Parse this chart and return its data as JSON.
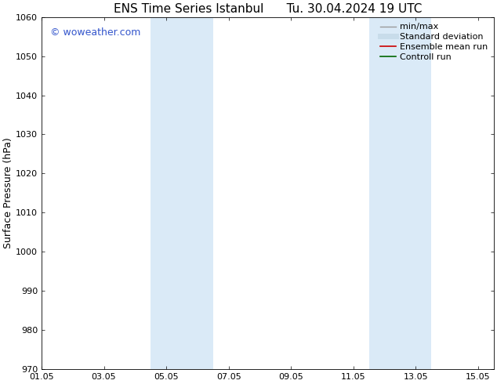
{
  "title_left": "ENS Time Series Istanbul",
  "title_right": "Tu. 30.04.2024 19 UTC",
  "ylabel": "Surface Pressure (hPa)",
  "ylim": [
    970,
    1060
  ],
  "yticks": [
    970,
    980,
    990,
    1000,
    1010,
    1020,
    1030,
    1040,
    1050,
    1060
  ],
  "xlim_start": 0.0,
  "xlim_end": 14.5,
  "xtick_labels": [
    "01.05",
    "03.05",
    "05.05",
    "07.05",
    "09.05",
    "11.05",
    "13.05",
    "15.05"
  ],
  "xtick_positions": [
    0,
    2,
    4,
    6,
    8,
    10,
    12,
    14
  ],
  "shaded_bands": [
    {
      "xmin": 3.5,
      "xmax": 5.5
    },
    {
      "xmin": 10.5,
      "xmax": 12.5
    }
  ],
  "shade_color": "#daeaf7",
  "background_color": "#ffffff",
  "watermark_text": "© woweather.com",
  "watermark_color": "#3355cc",
  "legend_items": [
    {
      "label": "min/max",
      "color": "#999999",
      "lw": 1.0
    },
    {
      "label": "Standard deviation",
      "color": "#c8dcea",
      "lw": 5.0
    },
    {
      "label": "Ensemble mean run",
      "color": "#cc0000",
      "lw": 1.2
    },
    {
      "label": "Controll run",
      "color": "#006600",
      "lw": 1.2
    }
  ],
  "title_fontsize": 11,
  "ylabel_fontsize": 9,
  "tick_fontsize": 8,
  "legend_fontsize": 8
}
